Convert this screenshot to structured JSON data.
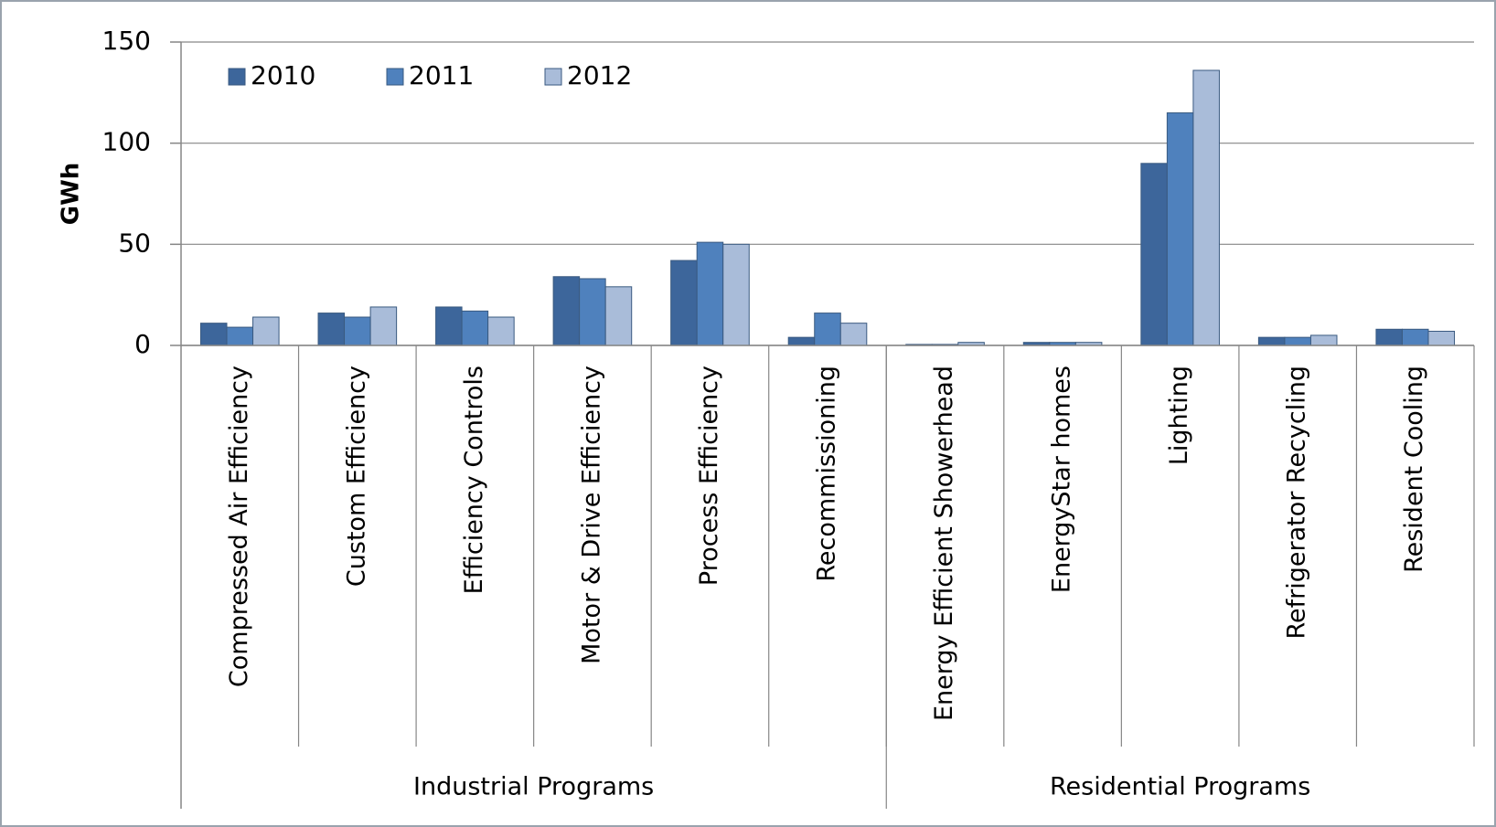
{
  "chart_data": {
    "type": "bar",
    "y_label": "GWh",
    "categories": [
      "Compressed Air Efficiency",
      "Custom Efficiency",
      "Efficiency Controls",
      "Motor & Drive Efficiency",
      "Process Efficiency",
      "Recommissioning",
      "Energy Efficient Showerhead",
      "EnergyStar homes",
      "Lighting",
      "Refrigerator Recycling",
      "Resident Cooling"
    ],
    "groups": [
      {
        "label": "Industrial Programs",
        "size": 6
      },
      {
        "label": "Residential Programs",
        "size": 5
      }
    ],
    "series": [
      {
        "name": "2010",
        "color": "#3d669b",
        "values": [
          11,
          16,
          19,
          34,
          42,
          4,
          0.5,
          1.5,
          90,
          4,
          8
        ]
      },
      {
        "name": "2011",
        "color": "#4f81bd",
        "values": [
          9,
          14,
          17,
          33,
          51,
          16,
          0.5,
          1.5,
          115,
          4,
          8
        ]
      },
      {
        "name": "2012",
        "color": "#a9bcd9",
        "values": [
          14,
          19,
          14,
          29,
          50,
          11,
          1.5,
          1.5,
          136,
          5,
          7
        ]
      }
    ],
    "ylim": [
      0,
      150
    ],
    "yticks": [
      0,
      50,
      100,
      150
    ],
    "grid": true,
    "legend": "top-left"
  }
}
